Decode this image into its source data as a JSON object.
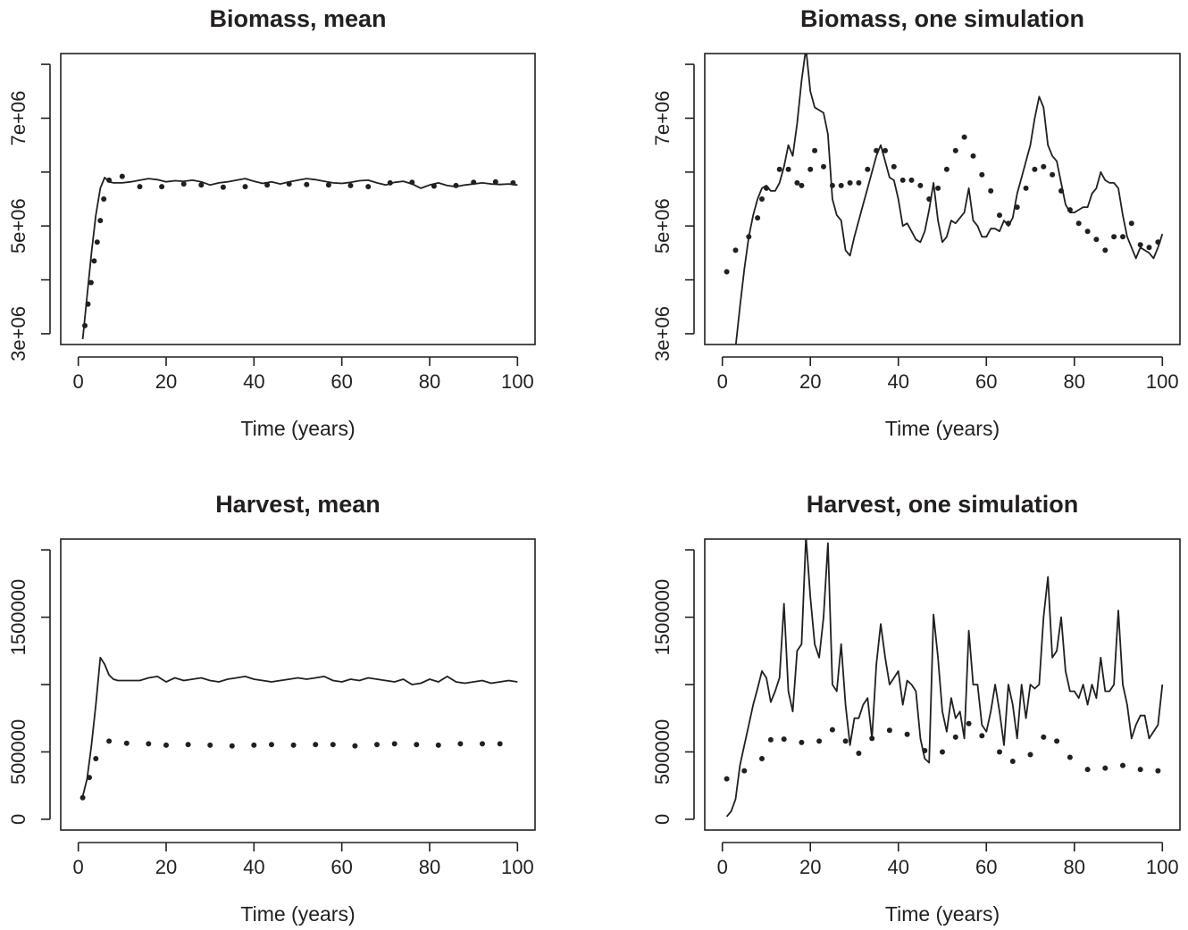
{
  "chart_data": [
    {
      "type": "line",
      "title": "Biomass, mean",
      "xlabel": "Time (years)",
      "ylabel": "",
      "xlim": [
        0,
        100
      ],
      "ylim": [
        3000000,
        8000000
      ],
      "xticks": [
        0,
        20,
        40,
        60,
        80,
        100
      ],
      "xtick_labels": [
        "0",
        "20",
        "40",
        "60",
        "80",
        "100"
      ],
      "yticks": [
        3000000,
        5000000,
        7000000
      ],
      "ytick_labels": [
        "3e+06",
        "5e+06",
        "7e+06"
      ],
      "yticks_minor": [
        4000000,
        6000000,
        8000000
      ],
      "grid": false,
      "series": [
        {
          "style": "line",
          "x": [
            1,
            2,
            3,
            4,
            5,
            6,
            7,
            8,
            10,
            12,
            14,
            16,
            18,
            20,
            22,
            24,
            26,
            28,
            30,
            32,
            34,
            36,
            38,
            40,
            42,
            44,
            46,
            48,
            50,
            52,
            54,
            56,
            58,
            60,
            62,
            64,
            66,
            68,
            70,
            72,
            74,
            76,
            78,
            80,
            82,
            84,
            86,
            88,
            90,
            92,
            94,
            96,
            98,
            100
          ],
          "y": [
            2900000,
            3700000,
            4500000,
            5200000,
            5700000,
            5900000,
            5820000,
            5800000,
            5800000,
            5820000,
            5850000,
            5880000,
            5860000,
            5820000,
            5840000,
            5830000,
            5850000,
            5820000,
            5760000,
            5800000,
            5820000,
            5850000,
            5880000,
            5830000,
            5790000,
            5820000,
            5780000,
            5820000,
            5850000,
            5880000,
            5860000,
            5830000,
            5800000,
            5790000,
            5810000,
            5840000,
            5850000,
            5800000,
            5760000,
            5810000,
            5830000,
            5780000,
            5700000,
            5760000,
            5800000,
            5750000,
            5730000,
            5760000,
            5780000,
            5800000,
            5780000,
            5770000,
            5780000,
            5760000
          ]
        },
        {
          "style": "points",
          "x": [
            1.5,
            2.2,
            2.9,
            3.6,
            4.3,
            5.0,
            5.8,
            7,
            10,
            14,
            19,
            24,
            28,
            33,
            38,
            43,
            48,
            52,
            57,
            62,
            66,
            71,
            76,
            81,
            86,
            90,
            95,
            99
          ],
          "y": [
            3150000,
            3550000,
            3950000,
            4350000,
            4700000,
            5100000,
            5500000,
            5850000,
            5920000,
            5730000,
            5730000,
            5780000,
            5760000,
            5720000,
            5730000,
            5760000,
            5780000,
            5770000,
            5760000,
            5750000,
            5730000,
            5800000,
            5810000,
            5740000,
            5750000,
            5810000,
            5820000,
            5800000
          ]
        }
      ]
    },
    {
      "type": "line",
      "title": "Biomass, one simulation",
      "xlabel": "Time (years)",
      "ylabel": "",
      "xlim": [
        0,
        100
      ],
      "ylim": [
        3000000,
        8000000
      ],
      "xticks": [
        0,
        20,
        40,
        60,
        80,
        100
      ],
      "xtick_labels": [
        "0",
        "20",
        "40",
        "60",
        "80",
        "100"
      ],
      "yticks": [
        3000000,
        5000000,
        7000000
      ],
      "ytick_labels": [
        "3e+06",
        "5e+06",
        "7e+06"
      ],
      "yticks_minor": [
        4000000,
        6000000,
        8000000
      ],
      "grid": false,
      "series": [
        {
          "style": "line",
          "x": [
            3,
            4,
            5,
            6,
            7,
            8,
            9,
            10,
            11,
            12,
            13,
            14,
            15,
            16,
            17,
            18,
            19,
            20,
            21,
            22,
            23,
            24,
            25,
            26,
            27,
            28,
            29,
            30,
            31,
            32,
            33,
            34,
            35,
            36,
            37,
            38,
            39,
            40,
            41,
            42,
            43,
            44,
            45,
            46,
            47,
            48,
            49,
            50,
            51,
            52,
            53,
            54,
            55,
            56,
            57,
            58,
            59,
            60,
            61,
            62,
            63,
            64,
            65,
            66,
            67,
            68,
            69,
            70,
            71,
            72,
            73,
            74,
            75,
            76,
            77,
            78,
            79,
            80,
            81,
            82,
            83,
            84,
            85,
            86,
            87,
            88,
            89,
            90,
            91,
            92,
            93,
            94,
            95,
            96,
            97,
            98,
            99,
            100
          ],
          "y": [
            2750000,
            3500000,
            4200000,
            4800000,
            5200000,
            5500000,
            5700000,
            5750000,
            5650000,
            5650000,
            5800000,
            6100000,
            6500000,
            6300000,
            6900000,
            7700000,
            8300000,
            7500000,
            7200000,
            7150000,
            7100000,
            6700000,
            5500000,
            5200000,
            5100000,
            4550000,
            4450000,
            4800000,
            5100000,
            5400000,
            5700000,
            6000000,
            6300000,
            6500000,
            6200000,
            5900000,
            5850000,
            5500000,
            5000000,
            5050000,
            4900000,
            4750000,
            4700000,
            4900000,
            5300000,
            5800000,
            5100000,
            4700000,
            4800000,
            5100000,
            5050000,
            5150000,
            5250000,
            5700000,
            5100000,
            5000000,
            4800000,
            4800000,
            4950000,
            4950000,
            4900000,
            5100000,
            5000000,
            5150000,
            5600000,
            5900000,
            6200000,
            6500000,
            7000000,
            7400000,
            7200000,
            6500000,
            6300000,
            6200000,
            5800000,
            5400000,
            5250000,
            5250000,
            5300000,
            5350000,
            5350000,
            5600000,
            5700000,
            6000000,
            5850000,
            5800000,
            5800000,
            5700000,
            5200000,
            4800000,
            4600000,
            4400000,
            4600000,
            4550000,
            4500000,
            4400000,
            4600000,
            4850000
          ]
        },
        {
          "style": "points",
          "x": [
            1,
            3,
            6,
            8,
            9,
            10,
            13,
            15,
            17,
            18,
            20,
            21,
            23,
            25,
            27,
            29,
            31,
            33,
            35,
            37,
            39,
            41,
            43,
            45,
            47,
            49,
            51,
            53,
            55,
            57,
            59,
            61,
            63,
            65,
            67,
            69,
            71,
            73,
            75,
            77,
            79,
            81,
            83,
            85,
            87,
            89,
            91,
            93,
            95,
            97,
            99
          ],
          "y": [
            4150000,
            4550000,
            4800000,
            5150000,
            5500000,
            5700000,
            6050000,
            6050000,
            5800000,
            5750000,
            6050000,
            6400000,
            6100000,
            5750000,
            5750000,
            5800000,
            5800000,
            6050000,
            6400000,
            6400000,
            6100000,
            5850000,
            5850000,
            5750000,
            5500000,
            5700000,
            6050000,
            6400000,
            6650000,
            6300000,
            5950000,
            5650000,
            5200000,
            5050000,
            5350000,
            5700000,
            6050000,
            6100000,
            5950000,
            5650000,
            5300000,
            5050000,
            4900000,
            4750000,
            4550000,
            4800000,
            4800000,
            5050000,
            4650000,
            4600000,
            4700000
          ]
        }
      ]
    },
    {
      "type": "line",
      "title": "Harvest, mean",
      "xlabel": "Time (years)",
      "ylabel": "",
      "xlim": [
        0,
        100
      ],
      "ylim": [
        0,
        2000000
      ],
      "xticks": [
        0,
        20,
        40,
        60,
        80,
        100
      ],
      "xtick_labels": [
        "0",
        "20",
        "40",
        "60",
        "80",
        "100"
      ],
      "yticks": [
        0,
        500000,
        1500000
      ],
      "ytick_labels": [
        "0",
        "500000",
        "1500000"
      ],
      "yticks_minor": [
        1000000,
        2000000
      ],
      "grid": false,
      "series": [
        {
          "style": "line",
          "x": [
            1,
            2,
            3,
            4,
            5,
            6,
            7,
            8,
            9,
            10,
            12,
            14,
            16,
            18,
            20,
            22,
            24,
            26,
            28,
            30,
            32,
            34,
            36,
            38,
            40,
            42,
            44,
            46,
            48,
            50,
            52,
            54,
            56,
            58,
            60,
            62,
            64,
            66,
            68,
            70,
            72,
            74,
            76,
            78,
            80,
            82,
            84,
            86,
            88,
            90,
            92,
            94,
            96,
            98,
            100
          ],
          "y": [
            170000,
            300000,
            550000,
            850000,
            1200000,
            1150000,
            1070000,
            1040000,
            1030000,
            1030000,
            1030000,
            1030000,
            1050000,
            1060000,
            1020000,
            1050000,
            1030000,
            1040000,
            1050000,
            1030000,
            1020000,
            1040000,
            1050000,
            1060000,
            1040000,
            1030000,
            1020000,
            1030000,
            1040000,
            1050000,
            1040000,
            1050000,
            1060000,
            1030000,
            1020000,
            1040000,
            1030000,
            1050000,
            1040000,
            1030000,
            1020000,
            1040000,
            1000000,
            1010000,
            1040000,
            1020000,
            1060000,
            1020000,
            1010000,
            1020000,
            1030000,
            1010000,
            1020000,
            1030000,
            1020000
          ]
        },
        {
          "style": "points",
          "x": [
            1,
            2.5,
            4,
            7,
            11,
            16,
            20,
            25,
            30,
            35,
            40,
            44,
            49,
            54,
            58,
            63,
            68,
            72,
            77,
            82,
            87,
            92,
            96
          ],
          "y": [
            160000,
            310000,
            450000,
            580000,
            565000,
            560000,
            550000,
            555000,
            550000,
            545000,
            550000,
            555000,
            550000,
            555000,
            555000,
            545000,
            555000,
            560000,
            555000,
            550000,
            560000,
            560000,
            560000
          ]
        }
      ]
    },
    {
      "type": "line",
      "title": "Harvest, one simulation",
      "xlabel": "Time (years)",
      "ylabel": "",
      "xlim": [
        0,
        100
      ],
      "ylim": [
        0,
        2000000
      ],
      "xticks": [
        0,
        20,
        40,
        60,
        80,
        100
      ],
      "xtick_labels": [
        "0",
        "20",
        "40",
        "60",
        "80",
        "100"
      ],
      "yticks": [
        0,
        500000,
        1500000
      ],
      "ytick_labels": [
        "0",
        "500000",
        "1500000"
      ],
      "yticks_minor": [
        1000000,
        2000000
      ],
      "grid": false,
      "series": [
        {
          "style": "line",
          "x": [
            1,
            2,
            3,
            4,
            5,
            6,
            7,
            8,
            9,
            10,
            11,
            12,
            13,
            14,
            15,
            16,
            17,
            18,
            19,
            20,
            21,
            22,
            23,
            24,
            25,
            26,
            27,
            28,
            29,
            30,
            31,
            32,
            33,
            34,
            35,
            36,
            37,
            38,
            39,
            40,
            41,
            42,
            43,
            44,
            45,
            46,
            47,
            48,
            49,
            50,
            51,
            52,
            53,
            54,
            55,
            56,
            57,
            58,
            59,
            60,
            61,
            62,
            63,
            64,
            65,
            66,
            67,
            68,
            69,
            70,
            71,
            72,
            73,
            74,
            75,
            76,
            77,
            78,
            79,
            80,
            81,
            82,
            83,
            84,
            85,
            86,
            87,
            88,
            89,
            90,
            91,
            92,
            93,
            94,
            95,
            96,
            97,
            98,
            99,
            100
          ],
          "y": [
            20000,
            60000,
            150000,
            400000,
            550000,
            700000,
            850000,
            970000,
            1100000,
            1050000,
            870000,
            950000,
            1050000,
            1600000,
            950000,
            800000,
            1250000,
            1300000,
            2100000,
            1650000,
            1300000,
            1200000,
            1500000,
            2050000,
            1000000,
            950000,
            1300000,
            850000,
            550000,
            750000,
            750000,
            850000,
            900000,
            600000,
            1150000,
            1450000,
            1200000,
            1000000,
            1050000,
            1100000,
            850000,
            1030000,
            1000000,
            950000,
            600000,
            450000,
            420000,
            1520000,
            1200000,
            800000,
            650000,
            900000,
            750000,
            800000,
            600000,
            1400000,
            1000000,
            1000000,
            700000,
            650000,
            800000,
            1000000,
            800000,
            550000,
            1000000,
            850000,
            600000,
            1000000,
            750000,
            1000000,
            970000,
            1000000,
            1500000,
            1800000,
            1200000,
            1250000,
            1500000,
            1100000,
            950000,
            950000,
            900000,
            1000000,
            850000,
            1000000,
            900000,
            1200000,
            950000,
            950000,
            1000000,
            1550000,
            1000000,
            850000,
            600000,
            700000,
            770000,
            770000,
            600000,
            650000,
            700000,
            1000000
          ]
        },
        {
          "style": "points",
          "x": [
            1,
            5,
            9,
            11,
            14,
            18,
            22,
            25,
            28,
            31,
            34,
            38,
            42,
            46,
            50,
            53,
            56,
            59,
            63,
            66,
            70,
            73,
            76,
            79,
            83,
            87,
            91,
            95,
            99
          ],
          "y": [
            300000,
            360000,
            450000,
            590000,
            595000,
            570000,
            580000,
            665000,
            580000,
            490000,
            600000,
            660000,
            630000,
            510000,
            500000,
            610000,
            710000,
            620000,
            500000,
            430000,
            480000,
            610000,
            580000,
            460000,
            370000,
            380000,
            400000,
            370000,
            360000
          ]
        }
      ]
    }
  ]
}
